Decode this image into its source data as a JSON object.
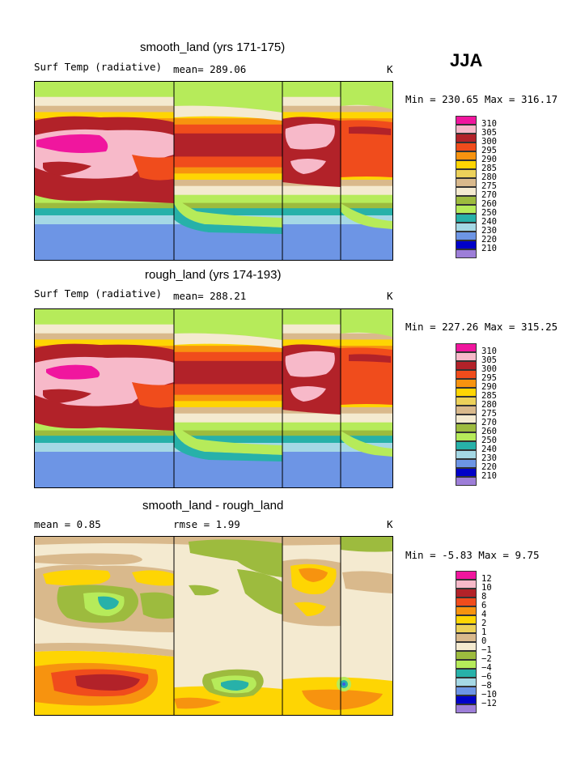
{
  "season": "JJA",
  "panels": [
    {
      "title": "smooth_land (yrs 171-175)",
      "left_label": "Surf Temp (radiative)",
      "stat_label": "mean= 289.06",
      "unit": "K",
      "minmax": "Min = 230.65 Max = 316.17"
    },
    {
      "title": "rough_land (yrs 174-193)",
      "left_label": "Surf Temp (radiative)",
      "stat_label": "mean= 288.21",
      "unit": "K",
      "minmax": "Min = 227.26 Max = 315.25"
    },
    {
      "title": "smooth_land - rough_land",
      "left_label": "mean =    0.85",
      "stat_label": "rmse =    1.99",
      "unit": "K",
      "minmax": "Min =  -5.83 Max =   9.75"
    }
  ],
  "chart_data": [
    {
      "type": "heatmap",
      "title": "smooth_land (yrs 171-175)",
      "variable": "Surf Temp (radiative)",
      "mean": 289.06,
      "min": 230.65,
      "max": 316.17,
      "unit": "K",
      "legend_levels": [
        "310",
        "305",
        "300",
        "295",
        "290",
        "285",
        "280",
        "275",
        "270",
        "260",
        "250",
        "240",
        "230",
        "220",
        "210"
      ],
      "legend_colors": [
        "#f0169e",
        "#f7b9c9",
        "#b22229",
        "#f04c1c",
        "#f7930f",
        "#fed503",
        "#ecd15a",
        "#d9b98c",
        "#f4ead0",
        "#9dbb3e",
        "#b6eb5a",
        "#27b1a9",
        "#a5d8e5",
        "#6d95e5",
        "#0000c8",
        "#9d7ed8"
      ],
      "zonal_bands_top_to_bottom": [
        {
          "level": "270",
          "color": "#b6eb5a"
        },
        {
          "level": "275",
          "color": "#f4ead0"
        },
        {
          "level": "280",
          "color": "#d9b98c"
        },
        {
          "level": "285",
          "color": "#fed503"
        },
        {
          "level": "290",
          "color": "#f7930f"
        },
        {
          "level": "295",
          "color": "#f04c1c"
        },
        {
          "level": "300",
          "color": "#b22229"
        },
        {
          "level": "295",
          "color": "#f04c1c"
        },
        {
          "level": "290",
          "color": "#f7930f"
        },
        {
          "level": "285",
          "color": "#fed503"
        },
        {
          "level": "280",
          "color": "#d9b98c"
        },
        {
          "level": "275",
          "color": "#f4ead0"
        },
        {
          "level": "270",
          "color": "#b6eb5a"
        },
        {
          "level": "260",
          "color": "#9dbb3e"
        },
        {
          "level": "250",
          "color": "#27b1a9"
        },
        {
          "level": "240",
          "color": "#a5d8e5"
        },
        {
          "level": "230",
          "color": "#6d95e5"
        }
      ]
    },
    {
      "type": "heatmap",
      "title": "rough_land (yrs 174-193)",
      "variable": "Surf Temp (radiative)",
      "mean": 288.21,
      "min": 227.26,
      "max": 315.25,
      "unit": "K",
      "legend_levels": [
        "310",
        "305",
        "300",
        "295",
        "290",
        "285",
        "280",
        "275",
        "270",
        "260",
        "250",
        "240",
        "230",
        "220",
        "210"
      ],
      "legend_colors": [
        "#f0169e",
        "#f7b9c9",
        "#b22229",
        "#f04c1c",
        "#f7930f",
        "#fed503",
        "#ecd15a",
        "#d9b98c",
        "#f4ead0",
        "#9dbb3e",
        "#b6eb5a",
        "#27b1a9",
        "#a5d8e5",
        "#6d95e5",
        "#0000c8",
        "#9d7ed8"
      ],
      "zonal_bands_top_to_bottom": [
        {
          "level": "270",
          "color": "#b6eb5a"
        },
        {
          "level": "275",
          "color": "#f4ead0"
        },
        {
          "level": "280",
          "color": "#d9b98c"
        },
        {
          "level": "285",
          "color": "#fed503"
        },
        {
          "level": "290",
          "color": "#f7930f"
        },
        {
          "level": "295",
          "color": "#f04c1c"
        },
        {
          "level": "300",
          "color": "#b22229"
        },
        {
          "level": "295",
          "color": "#f04c1c"
        },
        {
          "level": "290",
          "color": "#f7930f"
        },
        {
          "level": "285",
          "color": "#fed503"
        },
        {
          "level": "280",
          "color": "#d9b98c"
        },
        {
          "level": "275",
          "color": "#f4ead0"
        },
        {
          "level": "270",
          "color": "#b6eb5a"
        },
        {
          "level": "260",
          "color": "#9dbb3e"
        },
        {
          "level": "250",
          "color": "#27b1a9"
        },
        {
          "level": "240",
          "color": "#a5d8e5"
        },
        {
          "level": "230",
          "color": "#6d95e5"
        }
      ]
    },
    {
      "type": "heatmap",
      "title": "smooth_land - rough_land",
      "mean": 0.85,
      "rmse": 1.99,
      "min": -5.83,
      "max": 9.75,
      "unit": "K",
      "legend_levels": [
        "12",
        "10",
        "8",
        "6",
        "4",
        "2",
        "1",
        "0",
        "−1",
        "−2",
        "−4",
        "−6",
        "−8",
        "−10",
        "−12"
      ],
      "legend_colors": [
        "#f0169e",
        "#f7b9c9",
        "#b22229",
        "#f04c1c",
        "#f7930f",
        "#fed503",
        "#ecd15a",
        "#d9b98c",
        "#f4ead0",
        "#9dbb3e",
        "#b6eb5a",
        "#27b1a9",
        "#a5d8e5",
        "#6d95e5",
        "#0000c8",
        "#9d7ed8"
      ]
    }
  ]
}
